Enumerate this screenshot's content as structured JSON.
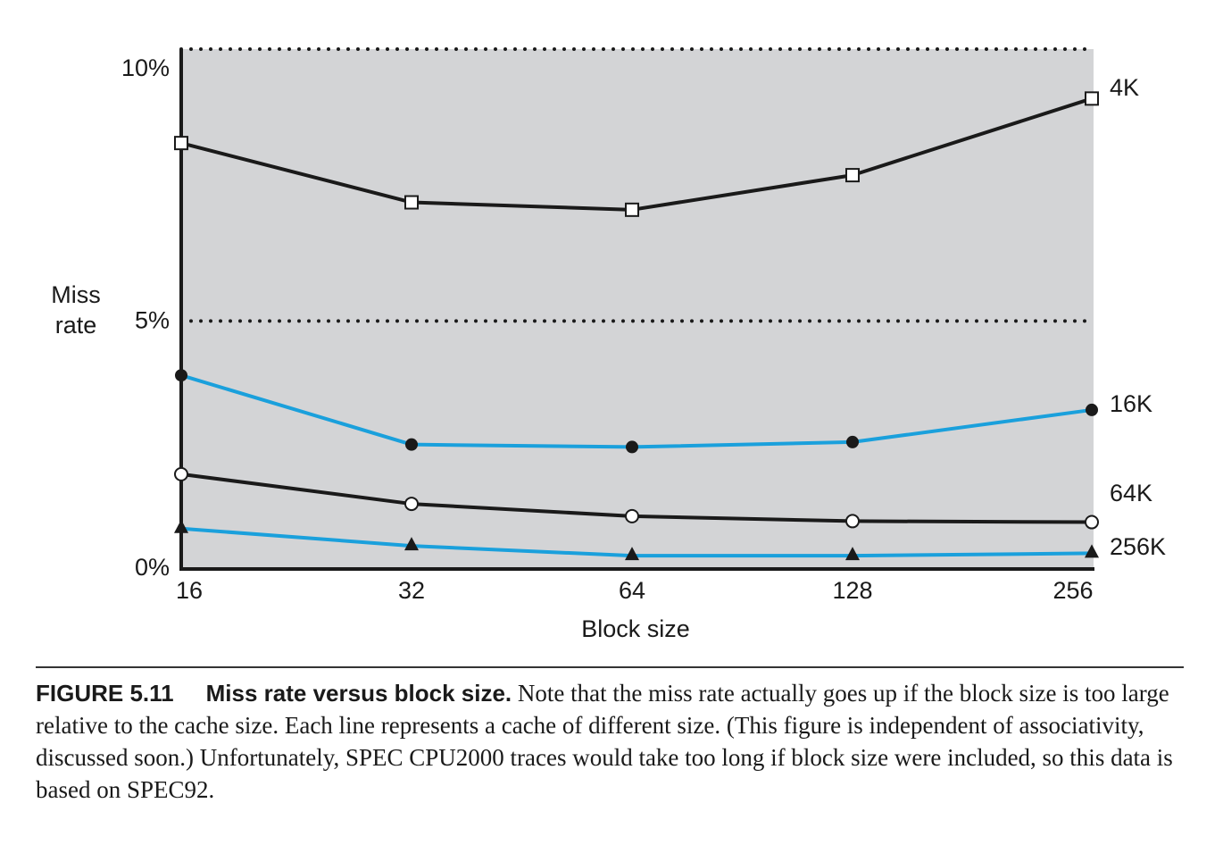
{
  "chart_data": {
    "type": "line",
    "x": [
      "16",
      "32",
      "64",
      "128",
      "256"
    ],
    "xlabel": "Block size",
    "ylabel": [
      "Miss",
      "rate"
    ],
    "ylim": [
      0,
      10.5
    ],
    "yticks": [
      {
        "value": 0,
        "label": "0%"
      },
      {
        "value": 5,
        "label": "5%"
      },
      {
        "value": 10,
        "label": "10%"
      }
    ],
    "grid": "dotted horizontal at 5% and 10.5%",
    "background": "#d3d4d6",
    "series": [
      {
        "name": "4K",
        "values": [
          8.6,
          7.4,
          7.25,
          7.95,
          9.5
        ],
        "color": "#1a1a1a",
        "marker": "open-square"
      },
      {
        "name": "16K",
        "values": [
          3.9,
          2.5,
          2.45,
          2.55,
          3.2
        ],
        "color": "#1aa0dc",
        "marker": "filled-circle"
      },
      {
        "name": "64K",
        "values": [
          1.9,
          1.3,
          1.05,
          0.95,
          0.93
        ],
        "color": "#1a1a1a",
        "marker": "open-circle"
      },
      {
        "name": "256K",
        "values": [
          0.8,
          0.45,
          0.25,
          0.25,
          0.3
        ],
        "color": "#1aa0dc",
        "marker": "filled-triangle"
      }
    ]
  },
  "caption": {
    "figure_number": "FIGURE 5.11",
    "title": "Miss rate versus block size.",
    "text": " Note that the miss rate actually goes up if the block size is too large relative to the cache size. Each line represents a cache of different size. (This figure is independent of associativity, discussed soon.) Unfortunately, SPEC CPU2000 traces would take too long if block size were included, so this data is based on SPEC92."
  }
}
